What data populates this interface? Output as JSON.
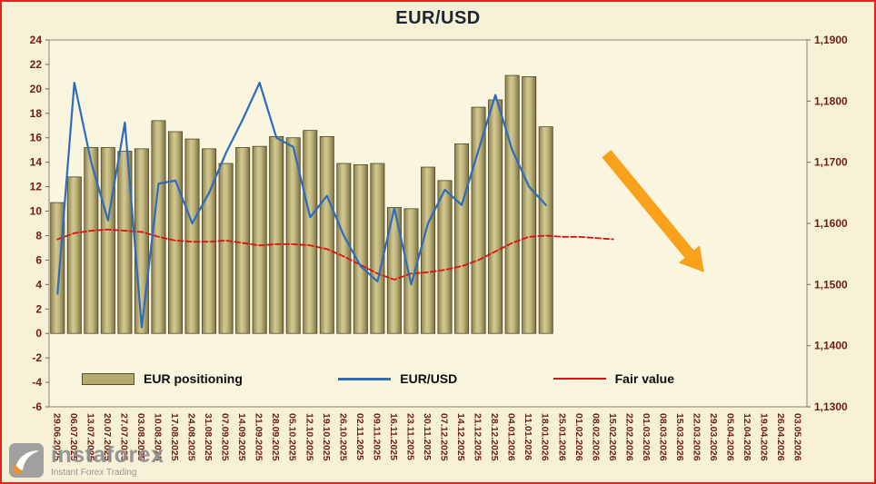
{
  "frame": {
    "background": "#f5f0d6",
    "border_color": "#e3231a"
  },
  "title": "EUR/USD",
  "chart_data": {
    "type": "combo",
    "title": "EUR/USD",
    "categories": [
      "29.06.2025",
      "06.07.2025",
      "13.07.2025",
      "20.07.2025",
      "27.07.2025",
      "03.08.2025",
      "10.08.2025",
      "17.08.2025",
      "24.08.2025",
      "31.08.2025",
      "07.09.2025",
      "14.09.2025",
      "21.09.2025",
      "28.09.2025",
      "05.10.2025",
      "12.10.2025",
      "19.10.2025",
      "26.10.2025",
      "02.11.2025",
      "09.11.2025",
      "16.11.2025",
      "23.11.2025",
      "30.11.2025",
      "07.12.2025",
      "14.12.2025",
      "21.12.2025",
      "28.12.2025",
      "04.01.2026",
      "11.01.2026",
      "18.01.2026",
      "25.01.2026",
      "01.02.2026",
      "08.02.2026",
      "15.02.2026",
      "22.02.2026",
      "01.03.2026",
      "08.03.2026",
      "15.03.2026",
      "22.03.2026",
      "29.03.2026",
      "05.04.2026",
      "12.04.2026",
      "19.04.2026",
      "26.04.2026",
      "03.05.2026"
    ],
    "series": [
      {
        "name": "EUR positioning",
        "type": "bar",
        "axis": "left",
        "color": "#b5aa6d",
        "values": [
          10.7,
          12.8,
          15.2,
          15.2,
          14.9,
          15.1,
          17.4,
          16.5,
          15.9,
          15.1,
          13.9,
          15.2,
          15.3,
          16.1,
          16.0,
          16.6,
          16.1,
          13.9,
          13.8,
          13.9,
          10.3,
          10.2,
          13.6,
          12.5,
          15.5,
          18.5,
          19.1,
          21.1,
          21.0,
          16.9
        ]
      },
      {
        "name": "EUR/USD",
        "type": "line",
        "axis": "right",
        "color": "#2e6cbb",
        "values": [
          1.1485,
          1.183,
          1.17,
          1.1605,
          1.1765,
          1.143,
          1.1665,
          1.167,
          1.16,
          1.165,
          1.1715,
          1.177,
          1.183,
          1.174,
          1.1725,
          1.161,
          1.1645,
          1.158,
          1.153,
          1.1505,
          1.1625,
          1.15,
          1.16,
          1.1655,
          1.163,
          1.172,
          1.181,
          1.172,
          1.166,
          1.163
        ]
      },
      {
        "name": "Fair value",
        "type": "line",
        "axis": "left",
        "color": "#e01010",
        "dashed": true,
        "values": [
          7.7,
          8.2,
          8.4,
          8.5,
          8.4,
          8.3,
          7.9,
          7.6,
          7.5,
          7.5,
          7.6,
          7.4,
          7.2,
          7.3,
          7.3,
          7.2,
          6.9,
          6.3,
          5.6,
          4.9,
          4.4,
          4.9,
          5.0,
          5.2,
          5.5,
          6.0,
          6.7,
          7.4,
          7.9,
          8.0,
          7.9,
          7.9,
          7.8,
          7.7
        ]
      }
    ],
    "left_axis": {
      "min": -6,
      "max": 24,
      "ticks": [
        "24",
        "22",
        "20",
        "18",
        "16",
        "14",
        "12",
        "10",
        "8",
        "6",
        "4",
        "2",
        "0",
        "-2",
        "-4",
        "-6"
      ]
    },
    "right_axis": {
      "min": 1.13,
      "max": 1.19,
      "ticks": [
        "1,1900",
        "1,1800",
        "1,1700",
        "1,1600",
        "1,1500",
        "1,1400",
        "1,1300"
      ]
    },
    "grid": false,
    "legend_position": "bottom",
    "annotation": {
      "type": "arrow",
      "color": "#f9a11b",
      "from": {
        "slot": 32.6,
        "value": 14.7
      },
      "to": {
        "slot": 38.4,
        "value": 5.0
      }
    }
  },
  "legend": {
    "items": [
      {
        "label": "EUR positioning",
        "swatch": "bar",
        "color": "#b5aa6d"
      },
      {
        "label": "EUR/USD",
        "swatch": "line",
        "color": "#2e6cbb"
      },
      {
        "label": "Fair value",
        "swatch": "line",
        "color": "#e01010"
      }
    ]
  },
  "watermark": {
    "brand": "instaforex",
    "tagline": "Instant Forex Trading"
  }
}
